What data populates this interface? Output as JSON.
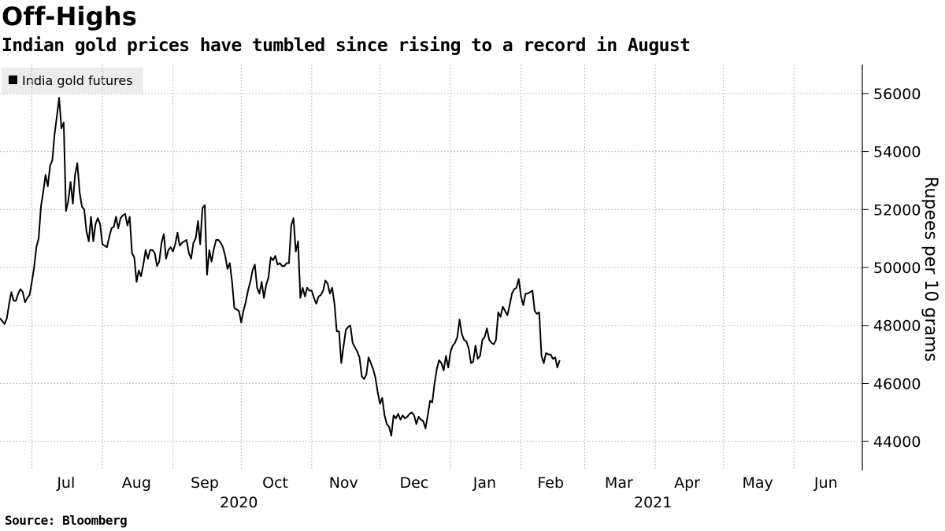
{
  "title": "Off-Highs",
  "subtitle": "Indian gold prices have tumbled since rising to a record in August",
  "source": "Source: Bloomberg",
  "line_color": "#000000",
  "chart_data": {
    "type": "line",
    "title": "Off-Highs",
    "subtitle": "Indian gold prices have tumbled since rising to a record in August",
    "ylabel": "Rupees per 10 grams",
    "ylim": [
      43000,
      57000
    ],
    "yticks": [
      44000,
      46000,
      48000,
      50000,
      52000,
      54000,
      56000
    ],
    "ytick_labels": [
      "44000",
      "46000",
      "48000",
      "50000",
      "52000",
      "54000",
      "56000"
    ],
    "y_axis_side": "right",
    "grid": true,
    "legend": {
      "position": "top-left",
      "entries": [
        "India gold futures"
      ]
    },
    "xlim": [
      "2020-06-17",
      "2021-07-01"
    ],
    "month_labels": [
      {
        "label": "Jul",
        "date": "2020-07-16"
      },
      {
        "label": "Aug",
        "date": "2020-08-16"
      },
      {
        "label": "Sep",
        "date": "2020-09-15"
      },
      {
        "label": "Oct",
        "date": "2020-10-16"
      },
      {
        "label": "Nov",
        "date": "2020-11-15"
      },
      {
        "label": "Dec",
        "date": "2020-12-16"
      },
      {
        "label": "Jan",
        "date": "2021-01-16"
      },
      {
        "label": "Feb",
        "date": "2021-02-14"
      },
      {
        "label": "Mar",
        "date": "2021-03-16"
      },
      {
        "label": "Apr",
        "date": "2021-04-15"
      },
      {
        "label": "May",
        "date": "2021-05-16"
      },
      {
        "label": "Jun",
        "date": "2021-06-15"
      }
    ],
    "year_labels": [
      {
        "label": "2020",
        "date": "2020-09-30"
      },
      {
        "label": "2021",
        "date": "2021-03-31"
      }
    ],
    "gridline_dates": [
      "2020-07-01",
      "2020-08-01",
      "2020-09-01",
      "2020-10-01",
      "2020-11-01",
      "2020-12-01",
      "2021-01-01",
      "2021-02-01",
      "2021-03-01",
      "2021-04-01",
      "2021-05-01",
      "2021-06-01",
      "2021-07-01"
    ],
    "series": [
      {
        "name": "India gold futures",
        "points": [
          [
            "2020-06-17",
            48250
          ],
          [
            "2020-06-18",
            48150
          ],
          [
            "2020-06-19",
            48050
          ],
          [
            "2020-06-20",
            48250
          ],
          [
            "2020-06-21",
            48750
          ],
          [
            "2020-06-22",
            49150
          ],
          [
            "2020-06-23",
            48850
          ],
          [
            "2020-06-24",
            48850
          ],
          [
            "2020-06-25",
            49100
          ],
          [
            "2020-06-26",
            49250
          ],
          [
            "2020-06-27",
            49150
          ],
          [
            "2020-06-28",
            48800
          ],
          [
            "2020-06-29",
            48950
          ],
          [
            "2020-06-30",
            49050
          ],
          [
            "2020-07-01",
            49500
          ],
          [
            "2020-07-02",
            50000
          ],
          [
            "2020-07-03",
            50700
          ],
          [
            "2020-07-04",
            51000
          ],
          [
            "2020-07-05",
            52100
          ],
          [
            "2020-07-06",
            52600
          ],
          [
            "2020-07-07",
            53200
          ],
          [
            "2020-07-08",
            52800
          ],
          [
            "2020-07-09",
            53500
          ],
          [
            "2020-07-10",
            53700
          ],
          [
            "2020-07-11",
            54600
          ],
          [
            "2020-07-12",
            55200
          ],
          [
            "2020-07-13",
            55850
          ],
          [
            "2020-07-14",
            54800
          ],
          [
            "2020-07-15",
            55000
          ],
          [
            "2020-07-16",
            51950
          ],
          [
            "2020-07-17",
            52300
          ],
          [
            "2020-07-18",
            52950
          ],
          [
            "2020-07-19",
            52200
          ],
          [
            "2020-07-20",
            53200
          ],
          [
            "2020-07-21",
            53600
          ],
          [
            "2020-07-22",
            52600
          ],
          [
            "2020-07-23",
            52100
          ],
          [
            "2020-07-24",
            52000
          ],
          [
            "2020-07-25",
            51250
          ],
          [
            "2020-07-26",
            50900
          ],
          [
            "2020-07-27",
            51750
          ],
          [
            "2020-07-28",
            50900
          ],
          [
            "2020-07-29",
            51500
          ],
          [
            "2020-07-30",
            51700
          ],
          [
            "2020-07-31",
            51500
          ],
          [
            "2020-08-01",
            50800
          ],
          [
            "2020-08-02",
            50750
          ],
          [
            "2020-08-03",
            50700
          ],
          [
            "2020-08-04",
            51050
          ],
          [
            "2020-08-05",
            51350
          ],
          [
            "2020-08-06",
            51400
          ],
          [
            "2020-08-07",
            51750
          ],
          [
            "2020-08-08",
            51350
          ],
          [
            "2020-08-09",
            51700
          ],
          [
            "2020-08-10",
            51800
          ],
          [
            "2020-08-11",
            51850
          ],
          [
            "2020-08-12",
            51450
          ],
          [
            "2020-08-13",
            51750
          ],
          [
            "2020-08-14",
            50500
          ],
          [
            "2020-08-15",
            50350
          ],
          [
            "2020-08-16",
            49500
          ],
          [
            "2020-08-17",
            49900
          ],
          [
            "2020-08-18",
            49700
          ],
          [
            "2020-08-19",
            50100
          ],
          [
            "2020-08-20",
            50600
          ],
          [
            "2020-08-21",
            50300
          ],
          [
            "2020-08-22",
            50600
          ],
          [
            "2020-08-23",
            50600
          ],
          [
            "2020-08-24",
            50500
          ],
          [
            "2020-08-25",
            50050
          ],
          [
            "2020-08-26",
            50200
          ],
          [
            "2020-08-27",
            50850
          ],
          [
            "2020-08-28",
            51150
          ],
          [
            "2020-08-29",
            50300
          ],
          [
            "2020-08-30",
            50600
          ],
          [
            "2020-08-31",
            50700
          ],
          [
            "2020-09-01",
            50550
          ],
          [
            "2020-09-02",
            50800
          ],
          [
            "2020-09-03",
            51200
          ],
          [
            "2020-09-04",
            50750
          ],
          [
            "2020-09-05",
            50850
          ],
          [
            "2020-09-06",
            50900
          ],
          [
            "2020-09-07",
            50950
          ],
          [
            "2020-09-08",
            50500
          ],
          [
            "2020-09-09",
            50300
          ],
          [
            "2020-09-10",
            50850
          ],
          [
            "2020-09-11",
            51000
          ],
          [
            "2020-09-12",
            51600
          ],
          [
            "2020-09-13",
            50800
          ],
          [
            "2020-09-14",
            52050
          ],
          [
            "2020-09-15",
            52150
          ],
          [
            "2020-09-16",
            49750
          ],
          [
            "2020-09-17",
            50600
          ],
          [
            "2020-09-18",
            50200
          ],
          [
            "2020-09-19",
            50650
          ],
          [
            "2020-09-20",
            50950
          ],
          [
            "2020-09-21",
            50950
          ],
          [
            "2020-09-22",
            50850
          ],
          [
            "2020-09-23",
            50700
          ],
          [
            "2020-09-24",
            50400
          ],
          [
            "2020-09-25",
            49950
          ],
          [
            "2020-09-26",
            50150
          ],
          [
            "2020-09-27",
            49500
          ],
          [
            "2020-09-28",
            48600
          ],
          [
            "2020-09-29",
            48550
          ],
          [
            "2020-09-30",
            48500
          ],
          [
            "2020-10-01",
            48100
          ],
          [
            "2020-10-02",
            48500
          ],
          [
            "2020-10-03",
            48800
          ],
          [
            "2020-10-04",
            49200
          ],
          [
            "2020-10-05",
            49500
          ],
          [
            "2020-10-06",
            49900
          ],
          [
            "2020-10-07",
            50100
          ],
          [
            "2020-10-08",
            49300
          ],
          [
            "2020-10-09",
            49100
          ],
          [
            "2020-10-10",
            49500
          ],
          [
            "2020-10-11",
            48950
          ],
          [
            "2020-10-12",
            49400
          ],
          [
            "2020-10-13",
            49650
          ],
          [
            "2020-10-14",
            50350
          ],
          [
            "2020-10-15",
            50250
          ],
          [
            "2020-10-16",
            50400
          ],
          [
            "2020-10-17",
            50100
          ],
          [
            "2020-10-18",
            50150
          ],
          [
            "2020-10-19",
            50050
          ],
          [
            "2020-10-20",
            50050
          ],
          [
            "2020-10-21",
            50150
          ],
          [
            "2020-10-22",
            50150
          ],
          [
            "2020-10-23",
            51450
          ],
          [
            "2020-10-24",
            51700
          ],
          [
            "2020-10-25",
            50550
          ],
          [
            "2020-10-26",
            50900
          ],
          [
            "2020-10-27",
            48950
          ],
          [
            "2020-10-28",
            49300
          ],
          [
            "2020-10-29",
            49000
          ],
          [
            "2020-10-30",
            49300
          ],
          [
            "2020-10-31",
            49200
          ],
          [
            "2020-11-01",
            49200
          ],
          [
            "2020-11-02",
            48950
          ],
          [
            "2020-11-03",
            48750
          ],
          [
            "2020-11-04",
            49000
          ],
          [
            "2020-11-05",
            49050
          ],
          [
            "2020-11-06",
            49200
          ],
          [
            "2020-11-07",
            49550
          ],
          [
            "2020-11-08",
            49450
          ],
          [
            "2020-11-09",
            49100
          ],
          [
            "2020-11-10",
            49300
          ],
          [
            "2020-11-11",
            48750
          ],
          [
            "2020-11-12",
            47800
          ],
          [
            "2020-11-13",
            47800
          ],
          [
            "2020-11-14",
            46700
          ],
          [
            "2020-11-15",
            47300
          ],
          [
            "2020-11-16",
            47850
          ],
          [
            "2020-11-17",
            47950
          ],
          [
            "2020-11-18",
            48000
          ],
          [
            "2020-11-19",
            47400
          ],
          [
            "2020-11-20",
            47250
          ],
          [
            "2020-11-21",
            47100
          ],
          [
            "2020-11-22",
            46900
          ],
          [
            "2020-11-23",
            46250
          ],
          [
            "2020-11-24",
            46150
          ],
          [
            "2020-11-25",
            46300
          ],
          [
            "2020-11-26",
            46900
          ],
          [
            "2020-11-27",
            46700
          ],
          [
            "2020-11-28",
            46500
          ],
          [
            "2020-11-29",
            46200
          ],
          [
            "2020-11-30",
            45700
          ],
          [
            "2020-12-01",
            45300
          ],
          [
            "2020-12-02",
            45500
          ],
          [
            "2020-12-03",
            44900
          ],
          [
            "2020-12-04",
            44600
          ],
          [
            "2020-12-05",
            44500
          ],
          [
            "2020-12-06",
            44200
          ],
          [
            "2020-12-07",
            44900
          ],
          [
            "2020-12-08",
            44800
          ],
          [
            "2020-12-09",
            44950
          ],
          [
            "2020-12-10",
            44750
          ],
          [
            "2020-12-11",
            44900
          ],
          [
            "2020-12-12",
            44800
          ],
          [
            "2020-12-13",
            44850
          ],
          [
            "2020-12-14",
            44950
          ],
          [
            "2020-12-15",
            45000
          ],
          [
            "2020-12-16",
            44900
          ],
          [
            "2020-12-17",
            44600
          ],
          [
            "2020-12-18",
            44850
          ],
          [
            "2020-12-19",
            44750
          ],
          [
            "2020-12-20",
            44700
          ],
          [
            "2020-12-21",
            44450
          ],
          [
            "2020-12-22",
            44900
          ],
          [
            "2020-12-23",
            45400
          ],
          [
            "2020-12-24",
            45350
          ],
          [
            "2020-12-25",
            46000
          ],
          [
            "2020-12-26",
            46500
          ],
          [
            "2020-12-27",
            46800
          ],
          [
            "2020-12-28",
            46700
          ],
          [
            "2020-12-29",
            46450
          ],
          [
            "2020-12-30",
            46950
          ],
          [
            "2020-12-31",
            46550
          ],
          [
            "2021-01-01",
            47100
          ],
          [
            "2021-01-02",
            47300
          ],
          [
            "2021-01-03",
            47400
          ],
          [
            "2021-01-04",
            47600
          ],
          [
            "2021-01-05",
            48200
          ],
          [
            "2021-01-06",
            47700
          ],
          [
            "2021-01-07",
            47500
          ],
          [
            "2021-01-08",
            47450
          ],
          [
            "2021-01-09",
            47200
          ],
          [
            "2021-01-10",
            46700
          ],
          [
            "2021-01-11",
            46750
          ],
          [
            "2021-01-12",
            47300
          ],
          [
            "2021-01-13",
            46850
          ],
          [
            "2021-01-14",
            46950
          ],
          [
            "2021-01-15",
            47500
          ],
          [
            "2021-01-16",
            47600
          ],
          [
            "2021-01-17",
            47900
          ],
          [
            "2021-01-18",
            47500
          ],
          [
            "2021-01-19",
            47400
          ],
          [
            "2021-01-20",
            47350
          ],
          [
            "2021-01-21",
            47500
          ],
          [
            "2021-01-22",
            48450
          ],
          [
            "2021-01-23",
            48300
          ],
          [
            "2021-01-24",
            48650
          ],
          [
            "2021-01-25",
            48500
          ],
          [
            "2021-01-26",
            48350
          ],
          [
            "2021-01-27",
            48700
          ],
          [
            "2021-01-28",
            49100
          ],
          [
            "2021-01-29",
            49250
          ],
          [
            "2021-01-30",
            49300
          ],
          [
            "2021-01-31",
            49600
          ],
          [
            "2021-02-01",
            49000
          ],
          [
            "2021-02-02",
            48700
          ],
          [
            "2021-02-03",
            49100
          ],
          [
            "2021-02-04",
            49100
          ],
          [
            "2021-02-05",
            49150
          ],
          [
            "2021-02-06",
            49200
          ],
          [
            "2021-02-07",
            48500
          ],
          [
            "2021-02-08",
            48400
          ],
          [
            "2021-02-09",
            48450
          ],
          [
            "2021-02-10",
            46950
          ],
          [
            "2021-02-11",
            46700
          ],
          [
            "2021-02-12",
            47050
          ],
          [
            "2021-02-13",
            47000
          ],
          [
            "2021-02-14",
            47000
          ],
          [
            "2021-02-15",
            46850
          ],
          [
            "2021-02-16",
            46900
          ],
          [
            "2021-02-17",
            46550
          ],
          [
            "2021-02-18",
            46800
          ]
        ]
      }
    ]
  }
}
